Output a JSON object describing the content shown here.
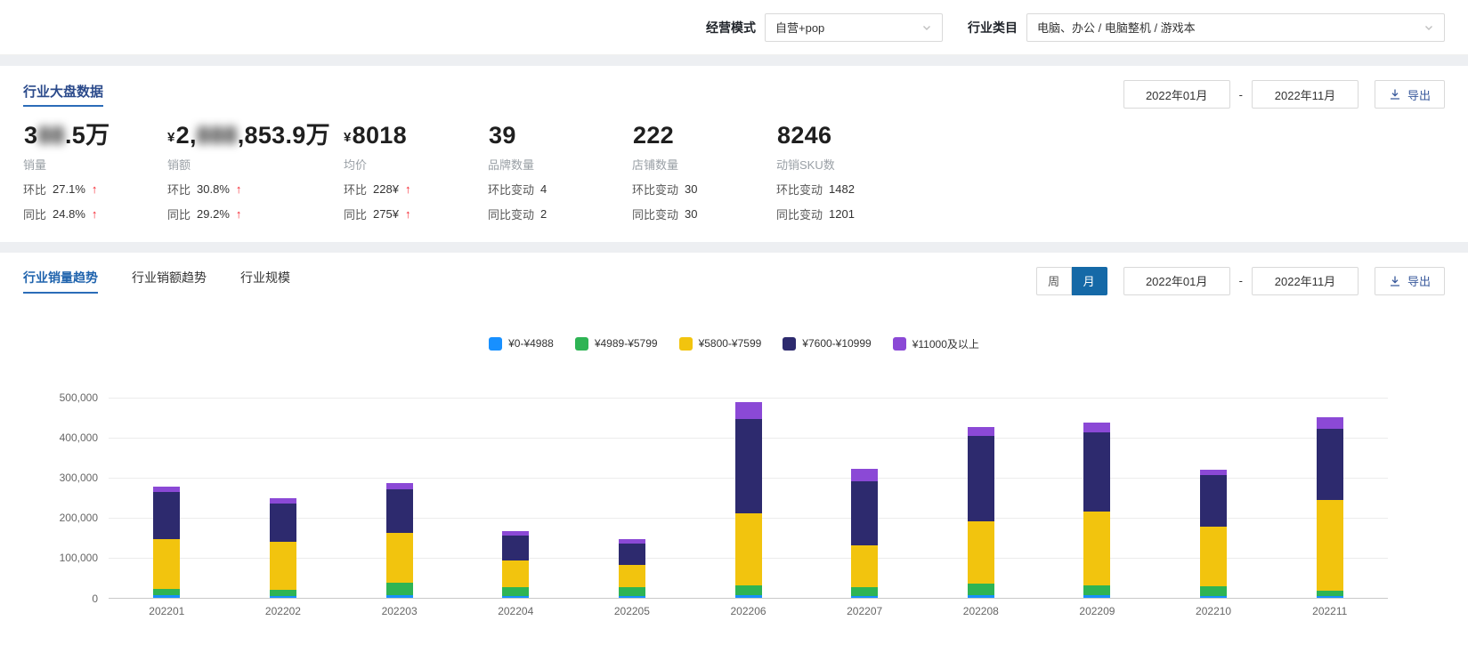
{
  "colors": {
    "accent": "#1890ff",
    "up_arrow_red": "#f5222d",
    "month_toggle_active": "#1569a7",
    "active_tab_underline": "#2b6cb8"
  },
  "header": {
    "mode_label": "经营模式",
    "mode_value": "自营+pop",
    "category_label": "行业类目",
    "category_value": "电脑、办公 / 电脑整机 / 游戏本"
  },
  "overview": {
    "tab_label": "行业大盘数据",
    "date_start": "2022年01月",
    "date_separator": "-",
    "date_end": "2022年11月",
    "export_label": "导出",
    "kpis": [
      {
        "currency": "",
        "value_p1": "3",
        "value_blurred": "88",
        "value_p2": ".5万",
        "label": "销量",
        "rows": [
          {
            "k": "环比",
            "v": "27.1%",
            "arrow": "↑"
          },
          {
            "k": "同比",
            "v": "24.8%",
            "arrow": "↑"
          }
        ]
      },
      {
        "currency": "¥",
        "value_p1": "2,",
        "value_blurred": "888",
        "value_p2": ",853.9万",
        "label": "销额",
        "rows": [
          {
            "k": "环比",
            "v": "30.8%",
            "arrow": "↑"
          },
          {
            "k": "同比",
            "v": "29.2%",
            "arrow": "↑"
          }
        ]
      },
      {
        "currency": "¥",
        "value_p1": "8018",
        "value_blurred": "",
        "value_p2": "",
        "label": "均价",
        "rows": [
          {
            "k": "环比",
            "v": "228¥",
            "arrow": "↑"
          },
          {
            "k": "同比",
            "v": "275¥",
            "arrow": "↑"
          }
        ]
      },
      {
        "currency": "",
        "value_p1": "39",
        "value_blurred": "",
        "value_p2": "",
        "label": "品牌数量",
        "rows": [
          {
            "k": "环比变动",
            "v": "4",
            "arrow": ""
          },
          {
            "k": "同比变动",
            "v": "2",
            "arrow": ""
          }
        ]
      },
      {
        "currency": "",
        "value_p1": "222",
        "value_blurred": "",
        "value_p2": "",
        "label": "店铺数量",
        "rows": [
          {
            "k": "环比变动",
            "v": "30",
            "arrow": ""
          },
          {
            "k": "同比变动",
            "v": "30",
            "arrow": ""
          }
        ]
      },
      {
        "currency": "",
        "value_p1": "8246",
        "value_blurred": "",
        "value_p2": "",
        "label": "动销SKU数",
        "rows": [
          {
            "k": "环比变动",
            "v": "1482",
            "arrow": ""
          },
          {
            "k": "同比变动",
            "v": "1201",
            "arrow": ""
          }
        ]
      }
    ]
  },
  "trend": {
    "tabs": [
      {
        "label": "行业销量趋势",
        "active": true
      },
      {
        "label": "行业销额趋势",
        "active": false
      },
      {
        "label": "行业规模",
        "active": false
      }
    ],
    "toggle_week": "周",
    "toggle_month": "月",
    "date_start": "2022年01月",
    "date_separator": "-",
    "date_end": "2022年11月",
    "export_label": "导出"
  },
  "chart_data": {
    "type": "bar",
    "stacked": true,
    "title": "",
    "xlabel": "",
    "ylabel": "",
    "legend_position": "top-center",
    "grid": true,
    "ylim": [
      0,
      500000
    ],
    "yticks": [
      "500,000",
      "400,000",
      "300,000",
      "200,000",
      "100,000",
      "0"
    ],
    "categories": [
      "202201",
      "202202",
      "202203",
      "202204",
      "202205",
      "202206",
      "202207",
      "202208",
      "202209",
      "202210",
      "202211"
    ],
    "series": [
      {
        "name": "¥0-¥4988",
        "color": "#1890ff",
        "values": [
          5000,
          4000,
          5000,
          3000,
          3000,
          5000,
          4000,
          5000,
          5000,
          4000,
          4000
        ]
      },
      {
        "name": "¥4989-¥5799",
        "color": "#2eb454",
        "values": [
          17000,
          16000,
          33000,
          22000,
          22000,
          25000,
          21000,
          30000,
          25000,
          24000,
          14000
        ]
      },
      {
        "name": "¥5800-¥7599",
        "color": "#f2c40e",
        "values": [
          123000,
          118000,
          122000,
          68000,
          57000,
          180000,
          105000,
          155000,
          185000,
          148000,
          224000
        ]
      },
      {
        "name": "¥7600-¥10999",
        "color": "#2d2a6e",
        "values": [
          118000,
          97000,
          110000,
          62000,
          53000,
          235000,
          160000,
          212000,
          195000,
          128000,
          178000
        ]
      },
      {
        "name": "¥11000及以上",
        "color": "#8b49d6",
        "values": [
          12000,
          13000,
          15000,
          10000,
          10000,
          40000,
          30000,
          23000,
          25000,
          14000,
          28000
        ]
      }
    ]
  }
}
